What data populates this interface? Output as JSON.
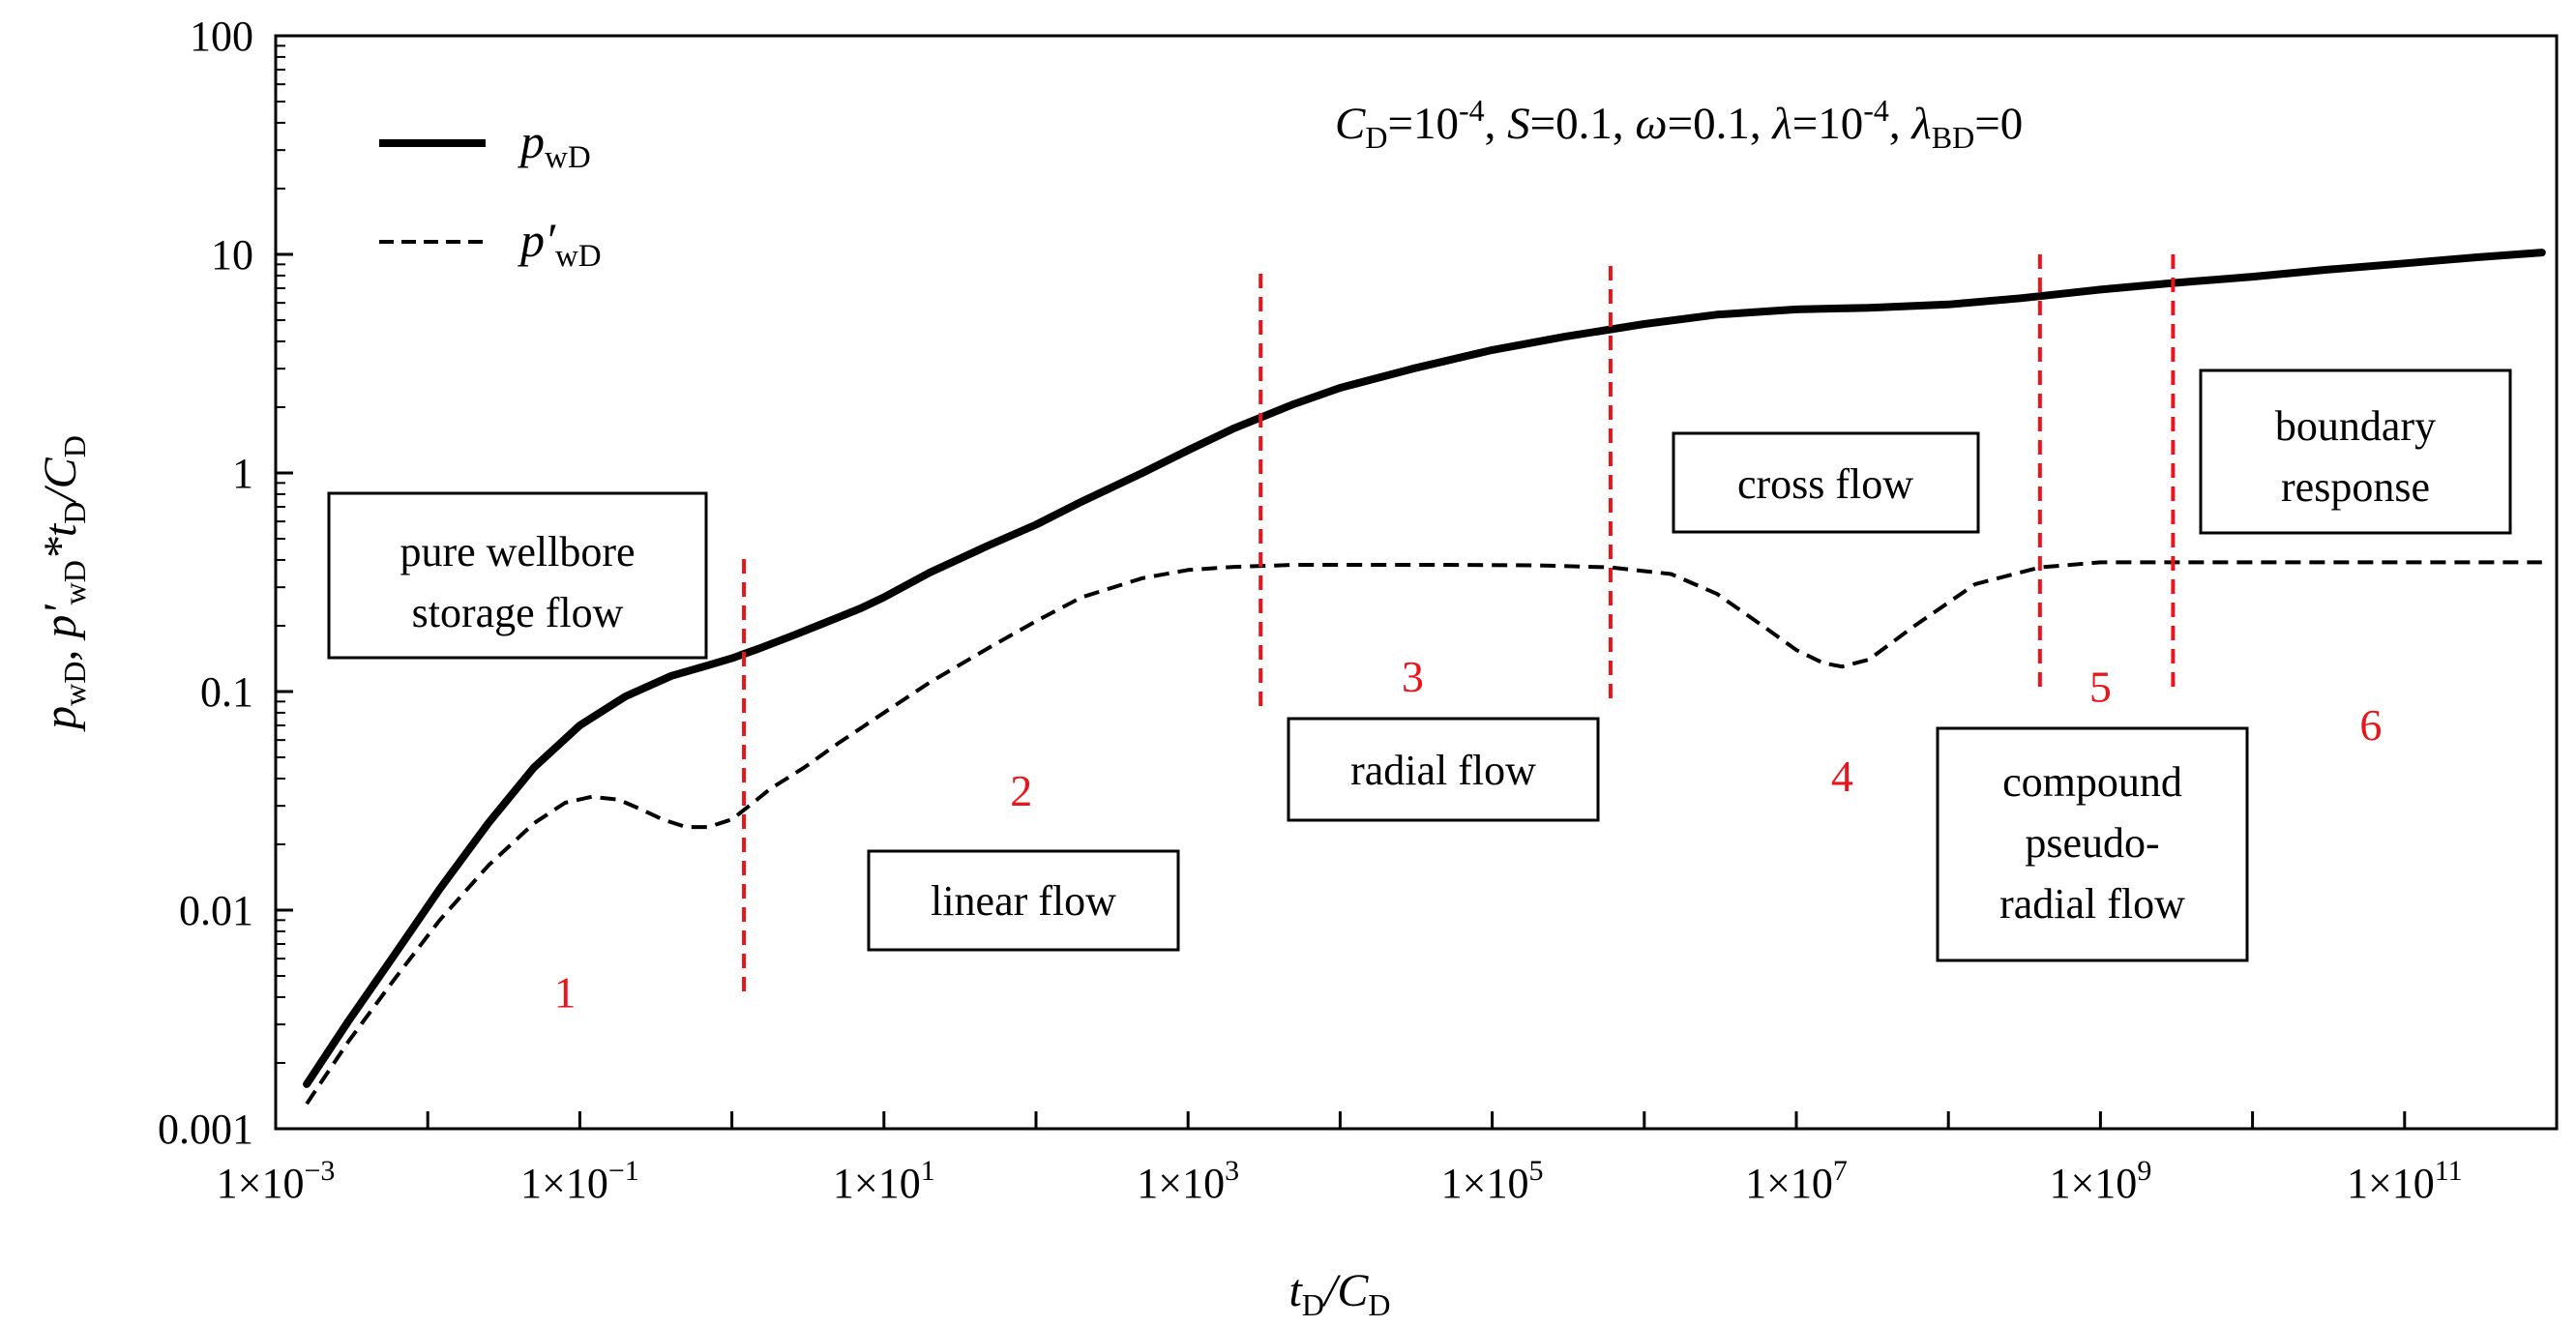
{
  "chart_data": {
    "type": "line",
    "x_scale": "log",
    "y_scale": "log",
    "xlim": [
      0.001,
      1000000000000
    ],
    "ylim": [
      0.001,
      100
    ],
    "x_ticks": [
      {
        "value": 0.001,
        "base": "1×10",
        "exp": "−3"
      },
      {
        "value": 0.1,
        "base": "1×10",
        "exp": "−1"
      },
      {
        "value": 10,
        "base": "1×10",
        "exp": "1"
      },
      {
        "value": 1000,
        "base": "1×10",
        "exp": "3"
      },
      {
        "value": 100000,
        "base": "1×10",
        "exp": "5"
      },
      {
        "value": 10000000,
        "base": "1×10",
        "exp": "7"
      },
      {
        "value": 1000000000,
        "base": "1×10",
        "exp": "9"
      },
      {
        "value": 100000000000,
        "base": "1×10",
        "exp": "11"
      }
    ],
    "y_ticks": [
      {
        "value": 0.001,
        "label": "0.001"
      },
      {
        "value": 0.01,
        "label": "0.01"
      },
      {
        "value": 0.1,
        "label": "0.1"
      },
      {
        "value": 1,
        "label": "1"
      },
      {
        "value": 10,
        "label": "10"
      },
      {
        "value": 100,
        "label": "100"
      }
    ],
    "xlabel": {
      "p1": "t",
      "s1": "D",
      "p2": "/C",
      "s2": "D"
    },
    "ylabel": {
      "p1": "p",
      "s1": "wD",
      "p2": ", p'",
      "s2": "wD",
      "p3": "*t",
      "s3": "D",
      "p4": "/C",
      "s4": "D"
    },
    "parameters": {
      "cd_sym": "C",
      "cd_sub": "D",
      "cd_val": "=10",
      "cd_exp": "-4",
      "sep1": ", ",
      "s_sym": "S",
      "s_val": "=0.1, ",
      "omega_sym": "ω",
      "omega_val": "=0.1, ",
      "lambda_sym": "λ",
      "lambda_val": "=10",
      "lambda_exp": "-4",
      "sep2": ", ",
      "lbd_sym": "λ",
      "lbd_sub": "BD",
      "lbd_val": "=0"
    },
    "legend": {
      "placement": "top-left",
      "entries": [
        {
          "series": "pwD",
          "style": "solid",
          "sym": "p",
          "sub": "wD"
        },
        {
          "series": "pwD_derivative",
          "style": "dashed",
          "sym": "p′",
          "sub": "wD"
        }
      ]
    },
    "series": [
      {
        "name": "pwD",
        "style": "solid",
        "x": [
          0.0016,
          0.003,
          0.006,
          0.012,
          0.025,
          0.05,
          0.1,
          0.2,
          0.4,
          0.7,
          1.0,
          1.5,
          2.5,
          4,
          7,
          10,
          20,
          50,
          100,
          200,
          500,
          1000,
          2000,
          5000,
          10000,
          30000,
          100000,
          300000,
          1000000,
          3000000,
          10000000,
          30000000,
          100000000,
          300000000,
          1000000000,
          3000000000,
          10000000000,
          30000000000,
          100000000000,
          300000000000,
          800000000000
        ],
        "y": [
          0.0016,
          0.0031,
          0.0062,
          0.0125,
          0.025,
          0.045,
          0.07,
          0.095,
          0.118,
          0.132,
          0.142,
          0.157,
          0.18,
          0.205,
          0.24,
          0.27,
          0.35,
          0.47,
          0.58,
          0.74,
          1.0,
          1.27,
          1.6,
          2.07,
          2.45,
          3.0,
          3.65,
          4.2,
          4.8,
          5.3,
          5.6,
          5.7,
          5.9,
          6.3,
          6.9,
          7.4,
          7.9,
          8.5,
          9.1,
          9.7,
          10.2
        ]
      },
      {
        "name": "pwD_derivative",
        "style": "dashed",
        "x": [
          0.0016,
          0.003,
          0.006,
          0.012,
          0.025,
          0.05,
          0.08,
          0.12,
          0.18,
          0.25,
          0.35,
          0.5,
          0.7,
          1.0,
          1.3,
          1.8,
          3,
          5,
          10,
          20,
          50,
          100,
          200,
          500,
          1000,
          2000,
          5000,
          10000,
          50000,
          200000,
          600000,
          1500000,
          3000000,
          6000000,
          10000000,
          15000000,
          20000000,
          30000000,
          60000000,
          150000000,
          400000000,
          1000000000,
          10000000000,
          100000000000,
          800000000000
        ],
        "y": [
          0.0013,
          0.0025,
          0.0048,
          0.009,
          0.016,
          0.025,
          0.031,
          0.033,
          0.032,
          0.029,
          0.026,
          0.024,
          0.024,
          0.026,
          0.03,
          0.036,
          0.045,
          0.058,
          0.08,
          0.11,
          0.16,
          0.21,
          0.27,
          0.33,
          0.36,
          0.372,
          0.38,
          0.38,
          0.38,
          0.378,
          0.37,
          0.345,
          0.28,
          0.2,
          0.155,
          0.135,
          0.13,
          0.14,
          0.2,
          0.31,
          0.37,
          0.39,
          0.39,
          0.39,
          0.39
        ]
      }
    ],
    "dividers_x": [
      1.2,
      3000,
      600000,
      400000000,
      3000000000
    ],
    "regions": [
      {
        "number": "1",
        "x": 0.08,
        "y": 0.0036
      },
      {
        "number": "2",
        "x": 80,
        "y": 0.03
      },
      {
        "number": "3",
        "x": 30000,
        "y": 0.1
      },
      {
        "number": "4",
        "x": 20000000,
        "y": 0.035
      },
      {
        "number": "5",
        "x": 1000000000,
        "y": 0.09
      },
      {
        "number": "6",
        "x": 60000000000,
        "y": 0.06
      }
    ],
    "flow_boxes": [
      {
        "lines": [
          "pure wellbore",
          "storage flow"
        ]
      },
      {
        "lines": [
          "linear flow"
        ]
      },
      {
        "lines": [
          "radial flow"
        ]
      },
      {
        "lines": [
          "cross flow"
        ]
      },
      {
        "lines": [
          "compound",
          "pseudo-",
          "radial flow"
        ]
      },
      {
        "lines": [
          "boundary",
          "response"
        ]
      }
    ],
    "colors": {
      "curve": "#000000",
      "divider": "#e8161b",
      "region_number": "#e8161b"
    }
  }
}
